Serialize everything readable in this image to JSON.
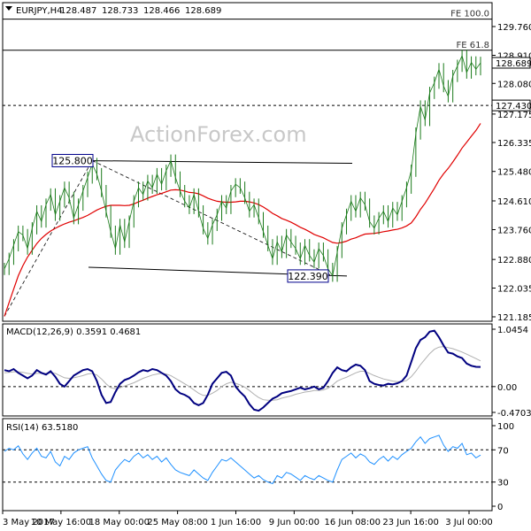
{
  "chart_data": {
    "type": "line",
    "title": "EURJPY,H4",
    "ohlc": [
      "128.487",
      "128.733",
      "128.466",
      "128.689"
    ],
    "watermark": "ActionForex.com",
    "x_labels": [
      "3 May 2017",
      "10 May 16:00",
      "18 May 00:00",
      "25 May 08:00",
      "1 Jun 16:00",
      "9 Jun 00:00",
      "16 Jun 08:00",
      "23 Jun 16:00",
      "3 Jul 00:00"
    ],
    "price": {
      "ylim": [
        121.185,
        129.76
      ],
      "ticks": [
        "129.760",
        "128.910",
        "128.080",
        "127.175",
        "126.335",
        "125.480",
        "124.610",
        "123.760",
        "122.880",
        "122.035",
        "121.185"
      ],
      "current": "128.689",
      "current_value": 128.689,
      "level": "127.430",
      "level_value": 127.43,
      "fib_levels": [
        {
          "label": "FE 100.0",
          "value": 129.98
        },
        {
          "label": "FE 61.8",
          "value": 129.06
        }
      ],
      "annotations": [
        {
          "label": "125.800",
          "value": 125.8
        },
        {
          "label": "122.390",
          "value": 122.39
        }
      ],
      "close": [
        122.6,
        122.9,
        123.3,
        123.7,
        123.6,
        123.2,
        123.8,
        124.3,
        124.0,
        124.5,
        124.8,
        124.2,
        124.6,
        125.0,
        124.7,
        124.1,
        124.5,
        124.9,
        125.3,
        125.7,
        125.4,
        124.9,
        124.3,
        123.7,
        123.2,
        123.9,
        123.4,
        124.0,
        124.6,
        125.0,
        124.8,
        125.2,
        125.0,
        125.4,
        125.1,
        125.5,
        125.8,
        125.3,
        124.9,
        124.6,
        124.4,
        124.8,
        124.3,
        123.8,
        123.5,
        123.9,
        124.2,
        124.6,
        124.4,
        124.9,
        125.1,
        125.0,
        124.7,
        124.3,
        124.5,
        124.1,
        123.7,
        123.3,
        122.9,
        123.4,
        123.1,
        123.6,
        123.4,
        123.2,
        122.9,
        123.3,
        123.0,
        122.8,
        123.2,
        123.0,
        122.6,
        122.4,
        123.1,
        123.8,
        124.2,
        124.6,
        124.3,
        124.7,
        124.5,
        124.0,
        123.8,
        124.1,
        124.3,
        124.0,
        124.4,
        124.2,
        124.6,
        125.0,
        125.5,
        126.6,
        127.4,
        127.0,
        127.8,
        128.1,
        128.5,
        128.0,
        127.7,
        128.3,
        128.6,
        128.9,
        128.4,
        128.7,
        128.5,
        128.689
      ],
      "ma": [
        121.2,
        121.6,
        122.0,
        122.4,
        122.7,
        122.95,
        123.15,
        123.35,
        123.5,
        123.62,
        123.72,
        123.8,
        123.87,
        123.93,
        123.98,
        124.02,
        124.07,
        124.12,
        124.18,
        124.26,
        124.34,
        124.4,
        124.45,
        124.48,
        124.48,
        124.48,
        124.47,
        124.48,
        124.52,
        124.58,
        124.63,
        124.69,
        124.74,
        124.79,
        124.83,
        124.88,
        124.93,
        124.94,
        124.93,
        124.9,
        124.86,
        124.85,
        124.82,
        124.76,
        124.69,
        124.64,
        124.6,
        124.58,
        124.57,
        124.57,
        124.58,
        124.6,
        124.6,
        124.58,
        124.55,
        124.5,
        124.43,
        124.34,
        124.24,
        124.17,
        124.09,
        124.04,
        123.98,
        123.91,
        123.83,
        123.77,
        123.7,
        123.62,
        123.57,
        123.52,
        123.45,
        123.38,
        123.36,
        123.38,
        123.42,
        123.48,
        123.52,
        123.58,
        123.63,
        123.64,
        123.65,
        123.67,
        123.7,
        123.72,
        123.75,
        123.77,
        123.81,
        123.87,
        123.96,
        124.14,
        124.36,
        124.54,
        124.76,
        124.98,
        125.22,
        125.41,
        125.57,
        125.76,
        125.96,
        126.17,
        126.34,
        126.52,
        126.69,
        126.9
      ]
    },
    "macd": {
      "label": "MACD(12,26,9) 0.3591 0.4681",
      "ylim": [
        -0.4703,
        1.0454
      ],
      "ticks": [
        "1.0454",
        "0.00",
        "-0.4703"
      ],
      "macd": [
        0.3,
        0.28,
        0.32,
        0.25,
        0.2,
        0.15,
        0.2,
        0.3,
        0.25,
        0.22,
        0.28,
        0.18,
        0.05,
        0.0,
        0.1,
        0.2,
        0.25,
        0.3,
        0.32,
        0.28,
        0.1,
        -0.15,
        -0.3,
        -0.28,
        -0.1,
        0.05,
        0.12,
        0.15,
        0.2,
        0.26,
        0.3,
        0.28,
        0.32,
        0.3,
        0.25,
        0.2,
        0.1,
        -0.05,
        -0.12,
        -0.15,
        -0.2,
        -0.3,
        -0.34,
        -0.3,
        -0.15,
        0.05,
        0.15,
        0.25,
        0.27,
        0.2,
        0.0,
        -0.1,
        -0.18,
        -0.32,
        -0.42,
        -0.44,
        -0.38,
        -0.3,
        -0.22,
        -0.18,
        -0.12,
        -0.1,
        -0.08,
        -0.05,
        -0.02,
        -0.05,
        -0.03,
        0.0,
        -0.05,
        -0.02,
        0.1,
        0.25,
        0.35,
        0.3,
        0.28,
        0.35,
        0.4,
        0.38,
        0.3,
        0.1,
        0.05,
        0.03,
        0.02,
        0.05,
        0.04,
        0.06,
        0.1,
        0.2,
        0.45,
        0.7,
        0.85,
        0.9,
        1.0,
        1.02,
        0.9,
        0.75,
        0.62,
        0.6,
        0.55,
        0.52,
        0.42,
        0.38,
        0.36,
        0.3591
      ],
      "signal": [
        0.25,
        0.26,
        0.27,
        0.27,
        0.26,
        0.24,
        0.23,
        0.24,
        0.24,
        0.24,
        0.25,
        0.24,
        0.2,
        0.16,
        0.15,
        0.16,
        0.18,
        0.2,
        0.23,
        0.24,
        0.21,
        0.14,
        0.05,
        -0.02,
        -0.04,
        -0.02,
        0.01,
        0.04,
        0.07,
        0.11,
        0.15,
        0.18,
        0.21,
        0.23,
        0.24,
        0.23,
        0.2,
        0.15,
        0.1,
        0.05,
        0.0,
        -0.06,
        -0.12,
        -0.16,
        -0.16,
        -0.12,
        -0.07,
        0.0,
        0.05,
        0.08,
        0.06,
        0.03,
        -0.01,
        -0.07,
        -0.14,
        -0.2,
        -0.24,
        -0.25,
        -0.25,
        -0.24,
        -0.21,
        -0.19,
        -0.17,
        -0.14,
        -0.12,
        -0.1,
        -0.09,
        -0.07,
        -0.07,
        -0.06,
        -0.03,
        0.03,
        0.1,
        0.14,
        0.17,
        0.21,
        0.25,
        0.28,
        0.28,
        0.24,
        0.2,
        0.17,
        0.14,
        0.12,
        0.1,
        0.09,
        0.09,
        0.11,
        0.18,
        0.28,
        0.4,
        0.5,
        0.6,
        0.68,
        0.72,
        0.73,
        0.71,
        0.69,
        0.66,
        0.63,
        0.59,
        0.55,
        0.51,
        0.4681
      ]
    },
    "rsi": {
      "label": "RSI(14) 63.5180",
      "ylim": [
        0,
        100
      ],
      "ticks": [
        "100",
        "70",
        "30",
        "0"
      ],
      "values": [
        68,
        72,
        70,
        75,
        65,
        58,
        66,
        72,
        62,
        60,
        68,
        55,
        50,
        62,
        58,
        66,
        70,
        72,
        74,
        60,
        50,
        40,
        32,
        30,
        45,
        52,
        58,
        55,
        62,
        66,
        60,
        64,
        58,
        62,
        55,
        60,
        52,
        45,
        42,
        40,
        38,
        45,
        40,
        35,
        32,
        42,
        50,
        58,
        56,
        60,
        55,
        50,
        45,
        40,
        35,
        38,
        33,
        30,
        28,
        38,
        35,
        42,
        40,
        36,
        32,
        38,
        35,
        33,
        38,
        35,
        32,
        30,
        45,
        58,
        62,
        66,
        60,
        65,
        62,
        55,
        52,
        58,
        62,
        56,
        62,
        58,
        64,
        68,
        72,
        80,
        86,
        78,
        84,
        86,
        88,
        76,
        68,
        74,
        72,
        78,
        64,
        66,
        60,
        63.518
      ]
    }
  }
}
